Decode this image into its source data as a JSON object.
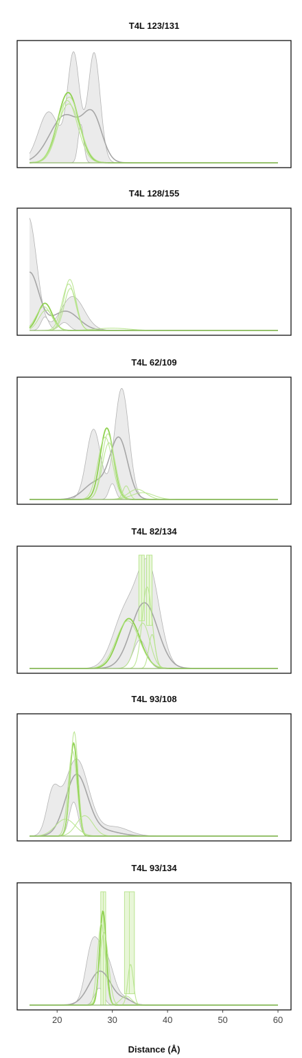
{
  "chart_data": {
    "type": "area",
    "xlabel": "Distance (Å)",
    "xlim": [
      15,
      60
    ],
    "xticks": [
      20,
      30,
      40,
      50,
      60
    ],
    "xtick_labels": [
      "20",
      "30",
      "40",
      "50",
      "60"
    ],
    "colors": {
      "band": "#ebebeb",
      "band_edge": "#b3b3b3",
      "mean": "#a6a6a6",
      "green": "#8fd14f",
      "green_light": "#b5e38a",
      "green_fill": "#e8f6d8"
    },
    "panels": [
      {
        "title": "T4L 123/131",
        "ylim": [
          0,
          1
        ],
        "gray": [
          {
            "mu": 23.0,
            "sd": 1.1,
            "w": 0.95
          },
          {
            "mu": 26.7,
            "sd": 1.1,
            "w": 0.97
          },
          {
            "mu": 18.5,
            "sd": 1.9,
            "w": 0.45
          }
        ],
        "gray_mean": [
          {
            "mu": 21.5,
            "sd": 2.8,
            "w": 0.42
          },
          {
            "mu": 26.5,
            "sd": 1.7,
            "w": 0.37
          }
        ],
        "gray_lower": [
          {
            "mu": 24.3,
            "sd": 0.5,
            "w": 0.34
          }
        ],
        "green": [
          {
            "mu": 22.0,
            "sd": 1.9,
            "w": 0.62
          },
          {
            "mu": 22.2,
            "sd": 1.9,
            "w": 0.58
          },
          {
            "mu": 21.8,
            "sd": 1.9,
            "w": 0.55
          },
          {
            "mu": 22.1,
            "sd": 2.0,
            "w": 0.52
          }
        ]
      },
      {
        "title": "T4L 128/155",
        "ylim": [
          0,
          1
        ],
        "gray": [
          {
            "mu": 14.8,
            "sd": 1.5,
            "w": 1.0
          },
          {
            "mu": 22.8,
            "sd": 2.1,
            "w": 0.3
          }
        ],
        "gray_mean": [
          {
            "mu": 15.0,
            "sd": 1.7,
            "w": 0.51
          },
          {
            "mu": 21.5,
            "sd": 2.4,
            "w": 0.17
          }
        ],
        "gray_lower": [
          {
            "mu": 17.8,
            "sd": 0.7,
            "w": 0.12
          },
          {
            "mu": 21.3,
            "sd": 0.9,
            "w": 0.07
          }
        ],
        "green": [
          {
            "mu": 17.8,
            "sd": 1.3,
            "w": 0.24
          },
          {
            "mu": 22.3,
            "sd": 1.1,
            "w": 0.45
          },
          {
            "mu": 17.6,
            "sd": 1.4,
            "w": 0.21
          },
          {
            "mu": 22.1,
            "sd": 1.2,
            "w": 0.41
          },
          {
            "mu": 18.0,
            "sd": 1.3,
            "w": 0.18
          },
          {
            "mu": 22.4,
            "sd": 1.1,
            "w": 0.37
          },
          {
            "mu": 30.0,
            "sd": 3.0,
            "w": 0.02
          }
        ]
      },
      {
        "title": "T4L 62/109",
        "ylim": [
          0,
          1
        ],
        "gray": [
          {
            "mu": 26.6,
            "sd": 1.3,
            "w": 0.62
          },
          {
            "mu": 31.7,
            "sd": 1.3,
            "w": 0.98
          }
        ],
        "gray_mean": [
          {
            "mu": 27.0,
            "sd": 2.1,
            "w": 0.15
          },
          {
            "mu": 31.2,
            "sd": 1.6,
            "w": 0.53
          }
        ],
        "gray_lower": [
          {
            "mu": 30.0,
            "sd": 0.6,
            "w": 0.14
          }
        ],
        "green": [
          {
            "mu": 29.0,
            "sd": 1.2,
            "w": 0.63
          },
          {
            "mu": 29.2,
            "sd": 1.1,
            "w": 0.58
          },
          {
            "mu": 28.7,
            "sd": 1.3,
            "w": 0.55
          },
          {
            "mu": 29.4,
            "sd": 1.2,
            "w": 0.5
          },
          {
            "mu": 32.5,
            "sd": 0.6,
            "w": 0.12
          },
          {
            "mu": 34.5,
            "sd": 1.6,
            "w": 0.09
          },
          {
            "mu": 35.5,
            "sd": 2.0,
            "w": 0.06
          }
        ]
      },
      {
        "title": "T4L 82/134",
        "ylim": [
          0,
          1
        ],
        "gray": [
          {
            "mu": 32.3,
            "sd": 2.2,
            "w": 0.48
          },
          {
            "mu": 36.5,
            "sd": 2.0,
            "w": 0.88
          }
        ],
        "gray_mean": [
          {
            "mu": 35.8,
            "sd": 2.4,
            "w": 0.58
          }
        ],
        "gray_lower": [
          {
            "mu": 35.0,
            "sd": 1.2,
            "w": 0.25
          }
        ],
        "green": [
          {
            "mu": 33.0,
            "sd": 2.0,
            "w": 0.44
          },
          {
            "mu": 32.8,
            "sd": 2.1,
            "w": 0.42
          },
          {
            "mu": 36.3,
            "sd": 0.9,
            "w": 0.72
          },
          {
            "mu": 35.5,
            "sd": 1.3,
            "w": 0.4
          },
          {
            "mu": 37.2,
            "sd": 0.6,
            "w": 0.3
          }
        ],
        "green_box": [
          {
            "x0": 34.8,
            "x1": 35.8,
            "top": 1.0,
            "bottom": 0.42
          },
          {
            "x0": 36.2,
            "x1": 37.2,
            "top": 1.0,
            "bottom": 0.38
          }
        ]
      },
      {
        "title": "T4L 93/108",
        "ylim": [
          0,
          1
        ],
        "gray": [
          {
            "mu": 19.2,
            "sd": 1.1,
            "w": 0.34
          },
          {
            "mu": 23.5,
            "sd": 2.2,
            "w": 0.68
          },
          {
            "mu": 30.5,
            "sd": 2.5,
            "w": 0.08
          }
        ],
        "gray_mean": [
          {
            "mu": 23.5,
            "sd": 2.0,
            "w": 0.53
          },
          {
            "mu": 28.0,
            "sd": 3.0,
            "w": 0.05
          }
        ],
        "gray_lower": [
          {
            "mu": 23.0,
            "sd": 0.8,
            "w": 0.3
          }
        ],
        "green": [
          {
            "mu": 23.0,
            "sd": 0.7,
            "w": 0.82
          },
          {
            "mu": 22.8,
            "sd": 0.8,
            "w": 0.75
          },
          {
            "mu": 23.1,
            "sd": 0.7,
            "w": 0.92
          },
          {
            "mu": 25.0,
            "sd": 1.5,
            "w": 0.18
          },
          {
            "mu": 21.5,
            "sd": 1.8,
            "w": 0.15
          }
        ]
      },
      {
        "title": "T4L 93/134",
        "ylim": [
          0,
          1
        ],
        "gray": [
          {
            "mu": 26.3,
            "sd": 1.2,
            "w": 0.47
          },
          {
            "mu": 28.8,
            "sd": 1.5,
            "w": 0.42
          },
          {
            "mu": 32.5,
            "sd": 1.0,
            "w": 0.05
          }
        ],
        "gray_mean": [
          {
            "mu": 27.8,
            "sd": 2.0,
            "w": 0.3
          },
          {
            "mu": 32.5,
            "sd": 1.2,
            "w": 0.04
          }
        ],
        "gray_lower": [
          {
            "mu": 27.6,
            "sd": 0.8,
            "w": 0.15
          }
        ],
        "green": [
          {
            "mu": 28.3,
            "sd": 0.6,
            "w": 0.83
          },
          {
            "mu": 28.0,
            "sd": 0.7,
            "w": 0.72
          },
          {
            "mu": 28.5,
            "sd": 0.8,
            "w": 0.64
          },
          {
            "mu": 33.3,
            "sd": 0.5,
            "w": 0.36
          },
          {
            "mu": 32.5,
            "sd": 1.0,
            "w": 0.08
          }
        ],
        "green_box": [
          {
            "x0": 27.9,
            "x1": 28.8,
            "top": 1.0,
            "bottom": 0.0
          },
          {
            "x0": 32.2,
            "x1": 34.0,
            "top": 1.0,
            "bottom": 0.1
          }
        ]
      }
    ]
  }
}
